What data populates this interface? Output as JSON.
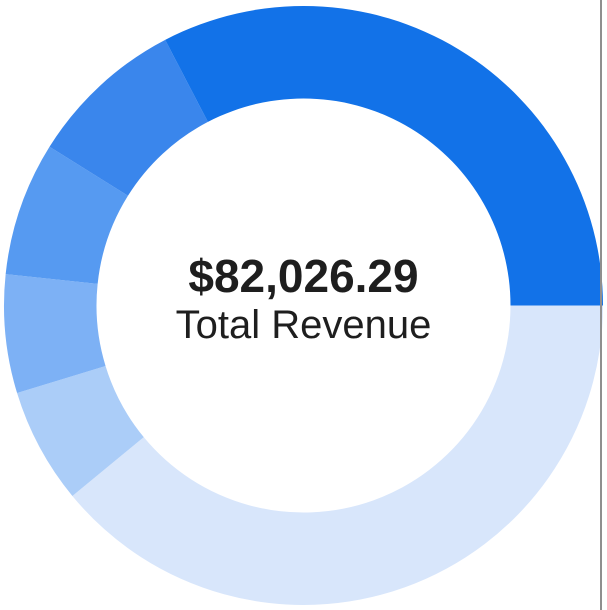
{
  "center_label": {
    "value": "$82,026.29",
    "caption": "Total Revenue"
  },
  "chart_data": {
    "type": "pie",
    "subtype": "donut",
    "title": "Total Revenue",
    "center_value": "$82,026.29",
    "legend": "none",
    "labels_visible": false,
    "start_angle_deg_clockwise_from_top": 90,
    "direction": "clockwise",
    "inner_radius_ratio": 0.69,
    "slices": [
      {
        "percent": 39.03,
        "color": "#d8e6fb"
      },
      {
        "percent": 6.25,
        "color": "#abcdf8"
      },
      {
        "percent": 6.39,
        "color": "#7db1f5"
      },
      {
        "percent": 7.22,
        "color": "#569af1"
      },
      {
        "percent": 8.47,
        "color": "#3a86ec"
      },
      {
        "percent": 32.64,
        "color": "#1272e8"
      }
    ]
  },
  "colors": {
    "text": "#1e1e1e",
    "background": "#ffffff",
    "divider": "#8f8f8f"
  }
}
